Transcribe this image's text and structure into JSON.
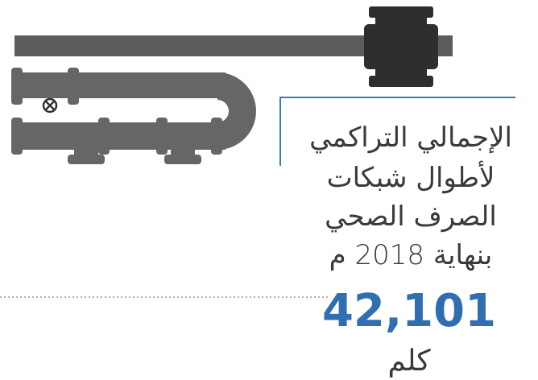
{
  "infographic": {
    "title_lines": [
      "الإجمالي التراكمي",
      "لأطوال شبكات",
      "الصرف الصحي",
      "بنهاية 2018 م"
    ],
    "value": "42,101",
    "unit": "كلم"
  }
}
